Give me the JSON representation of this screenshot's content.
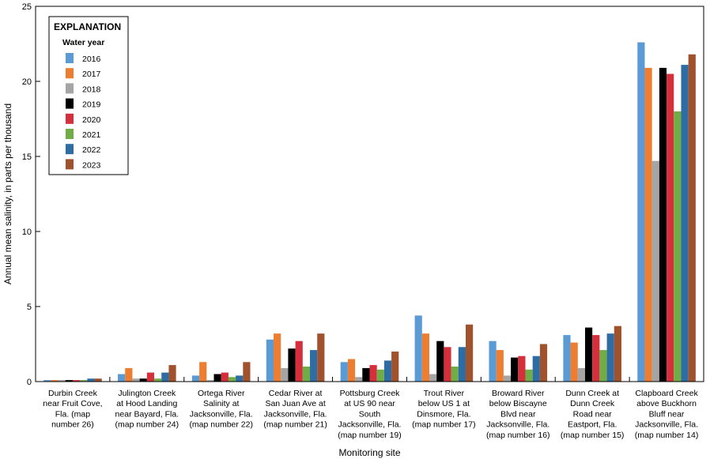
{
  "chart_data": {
    "type": "bar",
    "ylabel": "Annual mean salinity, in parts per thousand",
    "xlabel": "Monitoring site",
    "ylim": [
      0,
      25
    ],
    "yticks": [
      0,
      5,
      10,
      15,
      20,
      25
    ],
    "grid": false,
    "legend": {
      "title": "EXPLANATION",
      "subtitle": "Water year",
      "placement": "top-left"
    },
    "categories": [
      [
        "Durbin Creek",
        "near Fruit Cove,",
        "Fla. (map",
        "number 26)"
      ],
      [
        "Julington Creek",
        "at Hood Landing",
        "near Bayard, Fla.",
        "(map number 24)"
      ],
      [
        "Ortega River",
        "Salinity at",
        "Jacksonville, Fla.",
        "(map number 22)"
      ],
      [
        "Cedar River at",
        "San Juan Ave at",
        "Jacksonville, Fla.",
        "(map number 21)"
      ],
      [
        "Pottsburg Creek",
        "at US 90 near",
        "South",
        "Jacksonville, Fla.",
        "(map number 19)"
      ],
      [
        "Trout River",
        "below US 1 at",
        "Dinsmore, Fla.",
        "(map number 17)"
      ],
      [
        "Broward River",
        "below Biscayne",
        "Blvd near",
        "Jacksonville, Fla.",
        "(map number 16)"
      ],
      [
        "Dunn Creek at",
        "Dunn Creek",
        "Road near",
        "Eastport, Fla.",
        "(map number 15)"
      ],
      [
        "Clapboard Creek",
        "above Buckhorn",
        "Bluff near",
        "Jacksonville, Fla.",
        "(map number 14)"
      ]
    ],
    "series": [
      {
        "name": "2016",
        "color": "#5b9bd5",
        "values": [
          0.1,
          0.5,
          0.4,
          2.8,
          1.3,
          4.4,
          2.7,
          3.1,
          22.6
        ]
      },
      {
        "name": "2017",
        "color": "#ed7d31",
        "values": [
          0.1,
          0.9,
          1.3,
          3.2,
          1.5,
          3.2,
          2.1,
          2.6,
          20.9
        ]
      },
      {
        "name": "2018",
        "color": "#a5a5a5",
        "values": [
          0.1,
          0.2,
          0.1,
          0.9,
          0.3,
          0.5,
          0.4,
          0.9,
          14.7
        ]
      },
      {
        "name": "2019",
        "color": "#000000",
        "values": [
          0.1,
          0.2,
          0.5,
          2.2,
          0.9,
          2.7,
          1.6,
          3.6,
          20.9
        ]
      },
      {
        "name": "2020",
        "color": "#d62f3c",
        "values": [
          0.1,
          0.6,
          0.6,
          2.7,
          1.1,
          2.3,
          1.7,
          3.1,
          20.5
        ]
      },
      {
        "name": "2021",
        "color": "#70ad47",
        "values": [
          0.1,
          0.2,
          0.3,
          1.0,
          0.8,
          1.0,
          0.8,
          2.1,
          18.0
        ]
      },
      {
        "name": "2022",
        "color": "#2e6da4",
        "values": [
          0.2,
          0.6,
          0.4,
          2.1,
          1.4,
          2.3,
          1.7,
          3.2,
          21.1
        ]
      },
      {
        "name": "2023",
        "color": "#a0522d",
        "values": [
          0.2,
          1.1,
          1.3,
          3.2,
          2.0,
          3.8,
          2.5,
          3.7,
          21.8
        ]
      }
    ]
  }
}
